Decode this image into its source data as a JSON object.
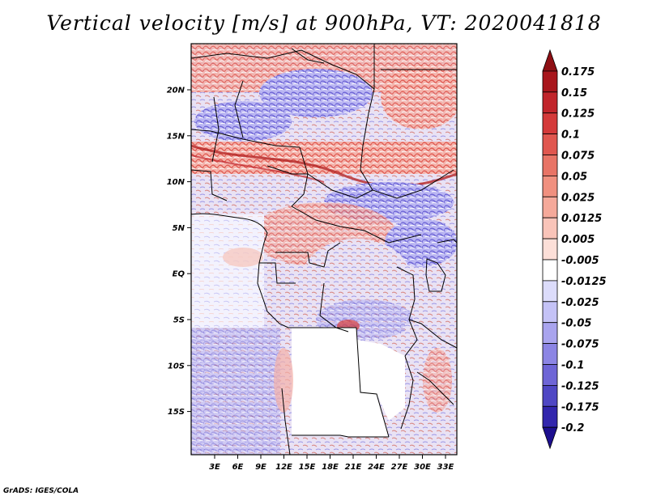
{
  "title": "Vertical velocity [m/s] at 900hPa, VT: 2020041818",
  "credit": "GrADS: IGES/COLA",
  "map": {
    "lat_labels": [
      "20N",
      "15N",
      "10N",
      "5N",
      "EQ",
      "5S",
      "10S",
      "15S"
    ],
    "lon_labels": [
      "3E",
      "6E",
      "9E",
      "12E",
      "15E",
      "18E",
      "21E",
      "24E",
      "27E",
      "30E",
      "33E"
    ]
  },
  "colorbar": {
    "levels": [
      "0.175",
      "0.15",
      "0.125",
      "0.1",
      "0.075",
      "0.05",
      "0.025",
      "0.0125",
      "0.005",
      "-0.005",
      "-0.0125",
      "-0.025",
      "-0.05",
      "-0.075",
      "-0.1",
      "-0.125",
      "-0.175",
      "-0.2"
    ],
    "colors": [
      "#a8161c",
      "#c1252b",
      "#d43a3a",
      "#e0574f",
      "#e87466",
      "#f0907f",
      "#f5a99a",
      "#f9c4b9",
      "#fcdfd8",
      "#ffffff",
      "#dcdcfb",
      "#c4c2f6",
      "#a9a4ee",
      "#8c85e4",
      "#6e65d6",
      "#4f47c4",
      "#3226ad",
      "#1d0f8f"
    ]
  }
}
